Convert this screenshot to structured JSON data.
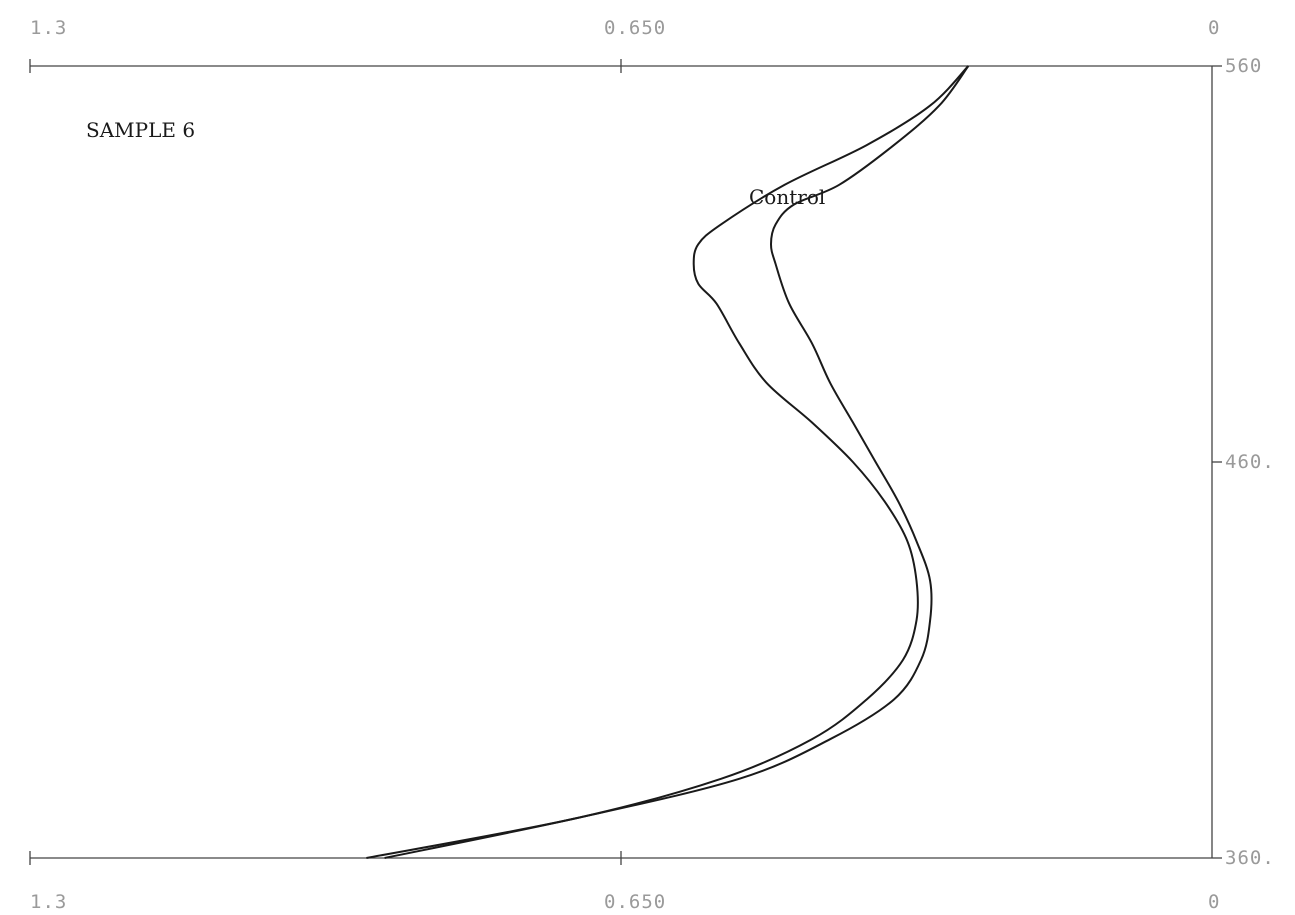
{
  "chart_data": {
    "type": "line",
    "title": "",
    "sample_label": "SAMPLE 6",
    "x_axis": {
      "reversed": true,
      "range": [
        1.3,
        0
      ],
      "top_tick_labels": [
        "1.3",
        "0.650",
        "0"
      ],
      "bottom_tick_labels": [
        "1.3",
        "0.650",
        "0"
      ],
      "tick_values": [
        1.3,
        0.65,
        0
      ]
    },
    "y_axis": {
      "side": "right",
      "range": [
        360,
        560
      ],
      "tick_labels": [
        "560",
        "460.",
        "360."
      ],
      "tick_values": [
        560,
        460,
        360
      ]
    },
    "grid": false,
    "series": [
      {
        "name": "",
        "points": [
          [
            0.268,
            560
          ],
          [
            0.31,
            550
          ],
          [
            0.38,
            540
          ],
          [
            0.47,
            530
          ],
          [
            0.54,
            520
          ],
          [
            0.565,
            515
          ],
          [
            0.57,
            510
          ],
          [
            0.565,
            505
          ],
          [
            0.545,
            500
          ],
          [
            0.52,
            490
          ],
          [
            0.49,
            480
          ],
          [
            0.44,
            470
          ],
          [
            0.395,
            460
          ],
          [
            0.36,
            450
          ],
          [
            0.335,
            440
          ],
          [
            0.325,
            430
          ],
          [
            0.325,
            420
          ],
          [
            0.34,
            410
          ],
          [
            0.38,
            400
          ],
          [
            0.44,
            390
          ],
          [
            0.54,
            380
          ],
          [
            0.7,
            370
          ],
          [
            0.93,
            360
          ]
        ]
      },
      {
        "name": "Control",
        "points": [
          [
            0.268,
            560
          ],
          [
            0.3,
            550
          ],
          [
            0.35,
            540
          ],
          [
            0.41,
            530
          ],
          [
            0.46,
            525
          ],
          [
            0.48,
            520
          ],
          [
            0.485,
            515
          ],
          [
            0.48,
            510
          ],
          [
            0.465,
            500
          ],
          [
            0.44,
            490
          ],
          [
            0.42,
            480
          ],
          [
            0.395,
            470
          ],
          [
            0.37,
            460
          ],
          [
            0.345,
            450
          ],
          [
            0.325,
            440
          ],
          [
            0.31,
            430
          ],
          [
            0.31,
            420
          ],
          [
            0.32,
            410
          ],
          [
            0.35,
            400
          ],
          [
            0.42,
            390
          ],
          [
            0.52,
            380
          ],
          [
            0.7,
            370
          ],
          [
            0.91,
            360
          ]
        ]
      }
    ]
  }
}
